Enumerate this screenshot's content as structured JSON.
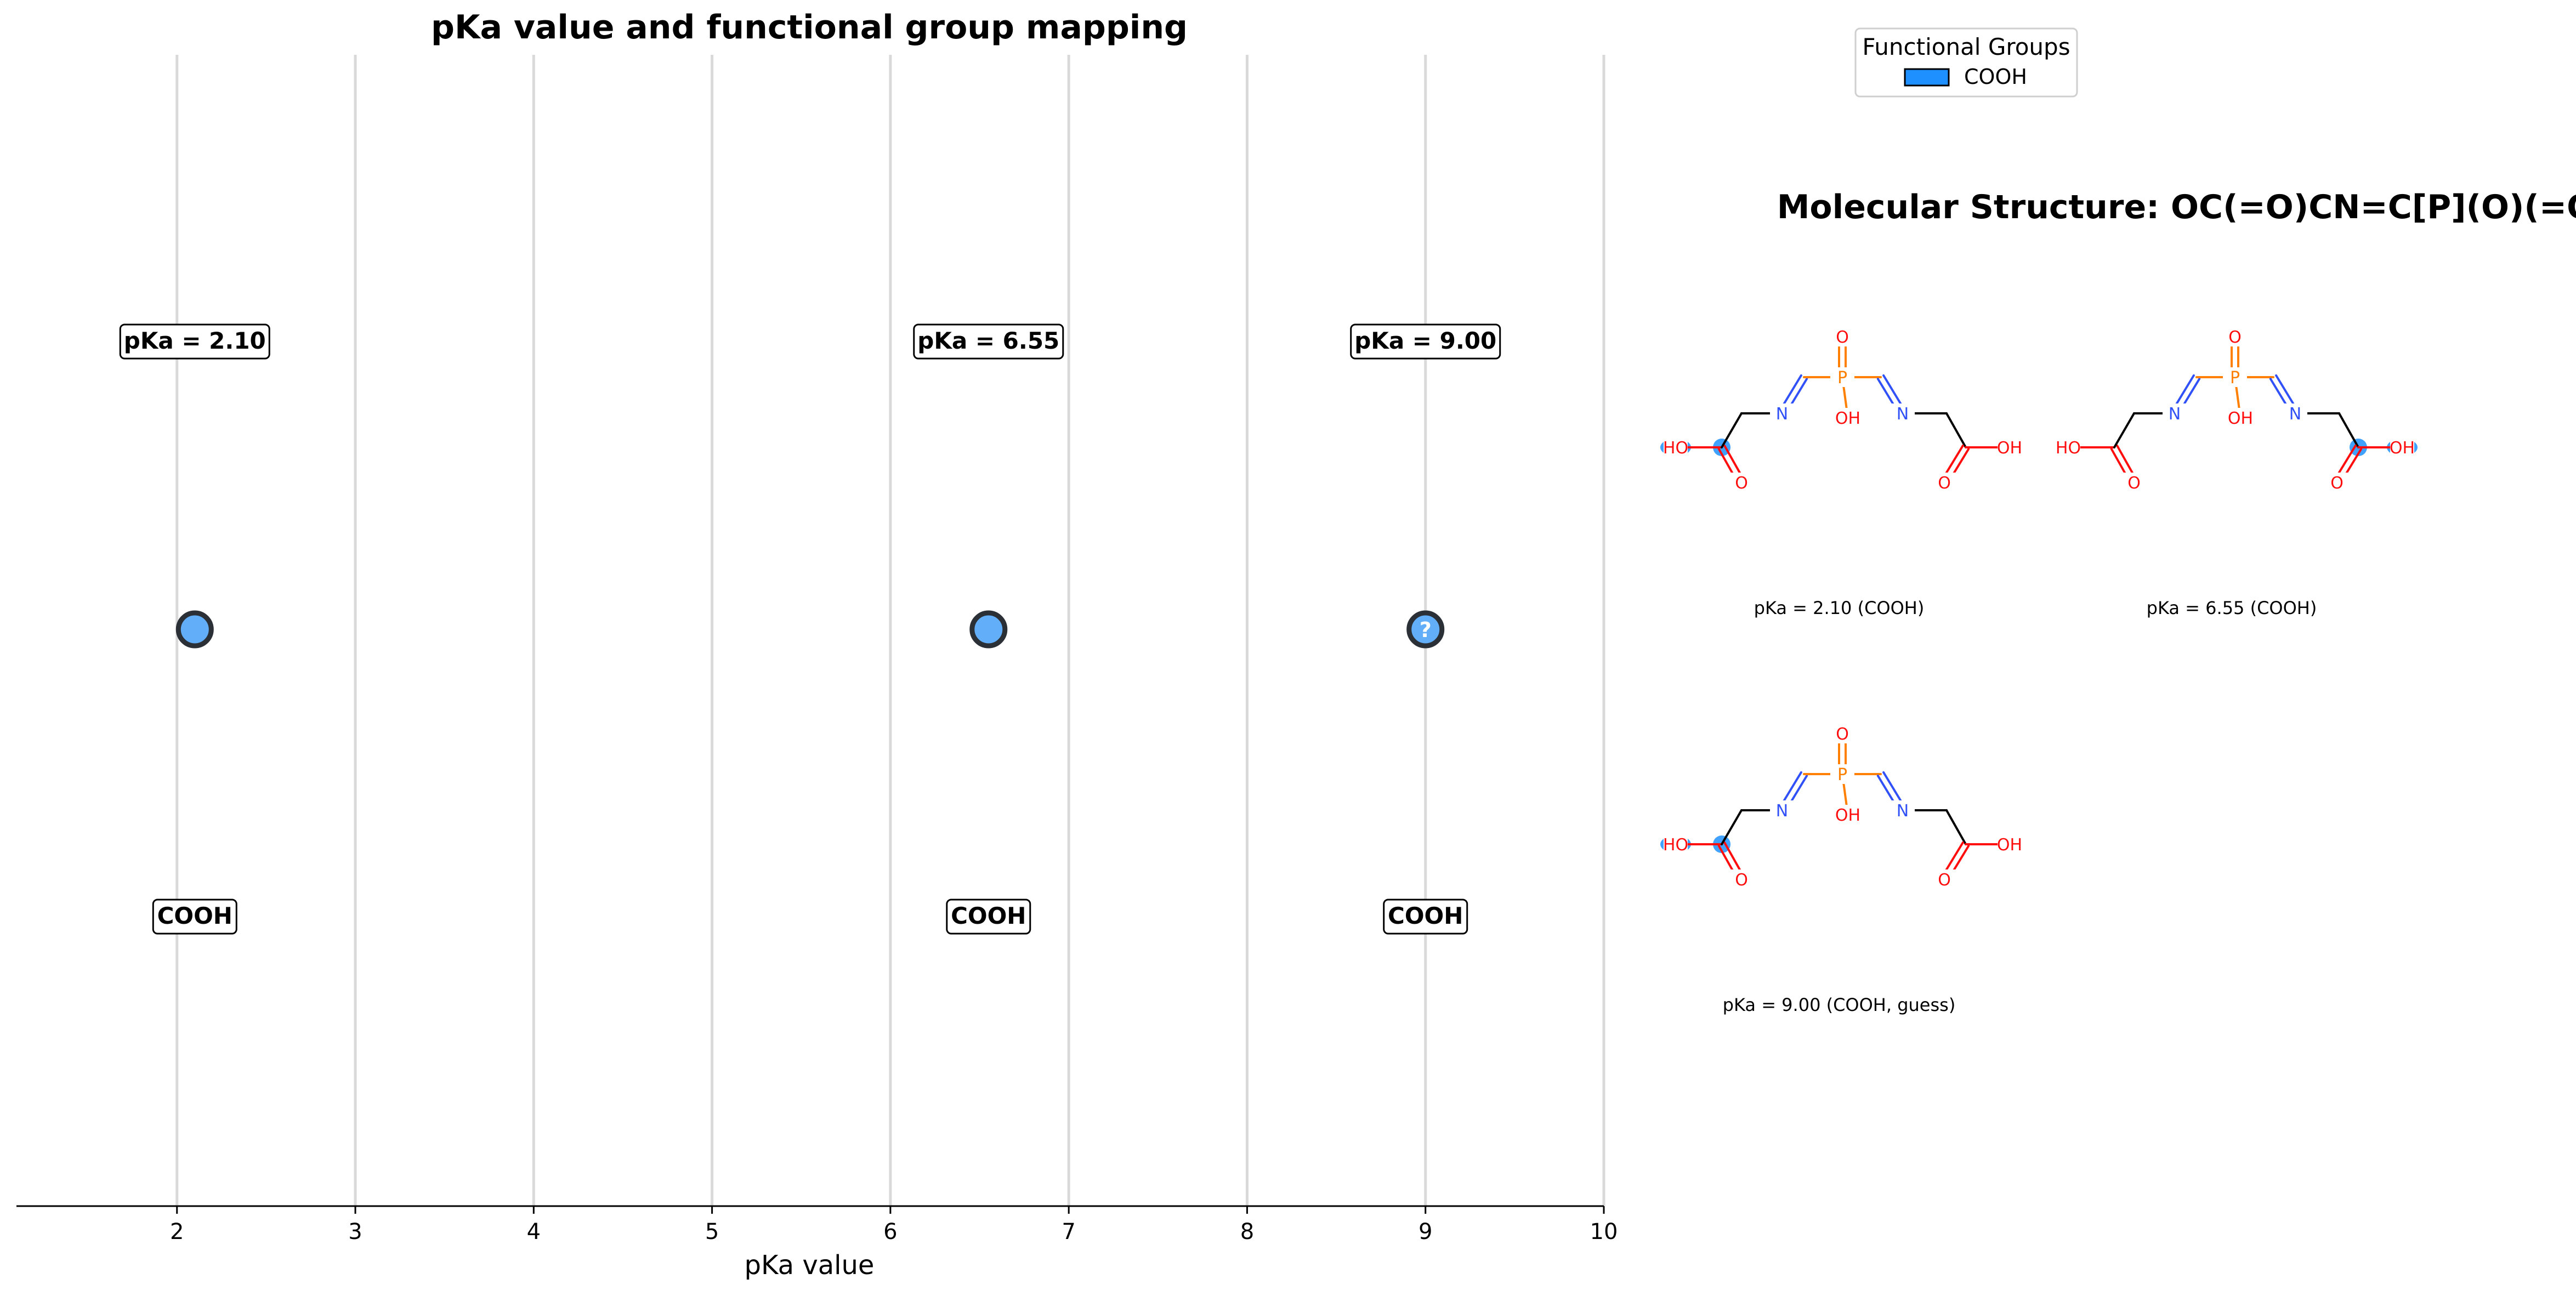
{
  "chart_data": {
    "type": "scatter",
    "title": "pKa value and functional group mapping",
    "xlabel": "pKa value",
    "ylabel": "",
    "xlim": [
      1.1,
      10
    ],
    "xticks": [
      2,
      3,
      4,
      5,
      6,
      7,
      8,
      9,
      10
    ],
    "grid": "vertical",
    "legend": {
      "title": "Functional Groups",
      "placement": "top-right",
      "entries": [
        {
          "label": "COOH",
          "color": "#1e90ff"
        }
      ]
    },
    "points": [
      {
        "x": 2.1,
        "label": "pKa = 2.10",
        "group": "COOH",
        "guess": false
      },
      {
        "x": 6.55,
        "label": "pKa = 6.55",
        "group": "COOH",
        "guess": false
      },
      {
        "x": 9.0,
        "label": "pKa = 9.00",
        "group": "COOH",
        "guess": true,
        "marker_text": "?"
      }
    ],
    "colors": {
      "point_fill": "#63aef8",
      "point_edge": "#2b2f36",
      "grid": "#d9d9d9"
    }
  },
  "structure_panel": {
    "title": "Molecular Structure: OC(=O)CN=C[P](O)(=O)C=NCC(O)=O",
    "captions": [
      "pKa = 2.10 (COOH)",
      "pKa = 6.55 (COOH)",
      "pKa = 9.00 (COOH, guess)"
    ],
    "atom_labels": {
      "oxygen_double": "O",
      "hydroxyl": "OH",
      "acid_oh": "HO",
      "nitrogen": "N",
      "phosphorus": "P"
    },
    "highlight_sides": [
      "left",
      "right",
      "left"
    ],
    "colors": {
      "oxygen": "#ff0d0d",
      "nitrogen": "#3050f8",
      "phosphorus": "#ff8000",
      "bond": "#000000",
      "highlight": "#1e90ff"
    }
  }
}
